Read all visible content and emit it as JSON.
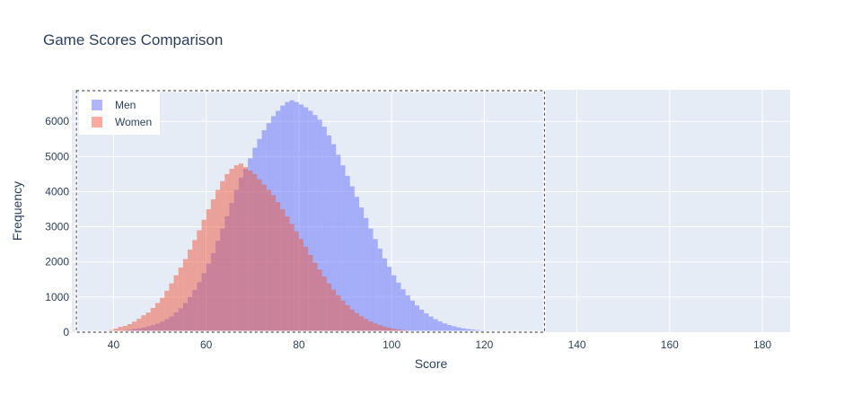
{
  "chart_data": {
    "type": "histogram",
    "title": "Game Scores Comparison",
    "xlabel": "Score",
    "ylabel": "Frequency",
    "xlim": [
      31,
      186
    ],
    "ylim": [
      0,
      6900
    ],
    "x_ticks": [
      40,
      60,
      80,
      100,
      120,
      140,
      160,
      180
    ],
    "y_ticks": [
      0,
      1000,
      2000,
      3000,
      4000,
      5000,
      6000
    ],
    "bin_width": 1,
    "bin_start": 36,
    "legend_position": "top-left",
    "grid": true,
    "plot_background": "#e5ecf6",
    "selection_box": {
      "x_range": [
        32,
        133
      ],
      "style": "dashed"
    },
    "series": [
      {
        "name": "Men",
        "color": "#636efa",
        "opacity": 0.5,
        "values": [
          5,
          10,
          15,
          20,
          30,
          40,
          55,
          70,
          90,
          110,
          135,
          160,
          200,
          245,
          300,
          370,
          450,
          560,
          680,
          830,
          1000,
          1200,
          1420,
          1680,
          1950,
          2250,
          2600,
          2950,
          3300,
          3680,
          4050,
          4400,
          4650,
          4950,
          5250,
          5500,
          5750,
          5950,
          6150,
          6300,
          6450,
          6550,
          6600,
          6550,
          6480,
          6400,
          6300,
          6180,
          6050,
          5850,
          5600,
          5350,
          5050,
          4750,
          4450,
          4150,
          3850,
          3550,
          3250,
          2950,
          2650,
          2380,
          2100,
          1860,
          1620,
          1410,
          1220,
          1050,
          900,
          760,
          640,
          535,
          445,
          370,
          305,
          250,
          205,
          168,
          137,
          111,
          90,
          73,
          59,
          48,
          38,
          30,
          24,
          19,
          15,
          12,
          9,
          7,
          5,
          4,
          3,
          2,
          2,
          1,
          1,
          1
        ]
      },
      {
        "name": "Women",
        "color": "#ef553b",
        "opacity": 0.5,
        "values": [
          10,
          20,
          40,
          60,
          100,
          150,
          180,
          230,
          300,
          380,
          480,
          560,
          690,
          830,
          980,
          1180,
          1390,
          1620,
          1840,
          2080,
          2350,
          2620,
          2900,
          3200,
          3500,
          3780,
          4050,
          4300,
          4500,
          4650,
          4750,
          4800,
          4700,
          4600,
          4500,
          4350,
          4200,
          4050,
          3900,
          3700,
          3500,
          3300,
          3080,
          2870,
          2650,
          2430,
          2200,
          1980,
          1780,
          1580,
          1390,
          1210,
          1050,
          900,
          770,
          650,
          545,
          455,
          375,
          305,
          248,
          200,
          160,
          126,
          98,
          76,
          58,
          44,
          33,
          24,
          18,
          13,
          9,
          6,
          4,
          3,
          2,
          1,
          1
        ]
      }
    ]
  }
}
